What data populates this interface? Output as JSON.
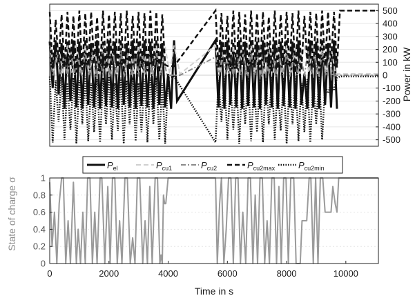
{
  "chart_data": [
    {
      "type": "line",
      "panel": "power",
      "y_axis_side": "right",
      "ylabel": "Power in kW",
      "ylim": [
        -550,
        550
      ],
      "yticks": [
        500,
        400,
        300,
        200,
        100,
        0,
        -100,
        -200,
        -300,
        -400,
        -500
      ],
      "xlim": [
        0,
        11100
      ],
      "grid": true,
      "legend_placement": "bottom-center",
      "series": [
        {
          "key": "P_el",
          "name": "P",
          "sub": "el",
          "style": "solid",
          "color": "#111111",
          "width": 3,
          "x": [
            0,
            100,
            200,
            300,
            400,
            500,
            600,
            700,
            800,
            900,
            1000,
            1100,
            1200,
            1300,
            1400,
            1500,
            1600,
            1700,
            1800,
            1900,
            2000,
            2100,
            2200,
            2300,
            2400,
            2500,
            2600,
            2700,
            2800,
            2900,
            3000,
            3100,
            3200,
            3300,
            3400,
            3500,
            3600,
            3700,
            3800,
            3900,
            4000,
            4100,
            4200,
            4300,
            5600,
            5700,
            5800,
            5900,
            6000,
            6100,
            6200,
            6300,
            6400,
            6500,
            6600,
            6700,
            6800,
            6900,
            7000,
            7100,
            7200,
            7300,
            7400,
            7500,
            7600,
            7700,
            7800,
            7900,
            8000,
            8100,
            8200,
            8300,
            8400,
            8500,
            8600,
            8700,
            8800,
            8900,
            9000,
            9100,
            9200,
            9300,
            9400,
            9500,
            9600,
            9700
          ],
          "y": [
            260,
            -100,
            270,
            -150,
            250,
            -260,
            260,
            -200,
            270,
            -250,
            260,
            -260,
            270,
            -230,
            250,
            -250,
            270,
            -260,
            260,
            -240,
            270,
            -250,
            260,
            -260,
            270,
            -230,
            250,
            -250,
            270,
            -260,
            260,
            -240,
            270,
            -250,
            260,
            -260,
            270,
            -230,
            250,
            -250,
            10,
            -260,
            270,
            -200,
            270,
            -250,
            260,
            -260,
            270,
            -230,
            250,
            -250,
            270,
            -260,
            260,
            -240,
            270,
            -250,
            260,
            -260,
            270,
            -230,
            250,
            -250,
            270,
            -260,
            260,
            -240,
            270,
            -250,
            260,
            -260,
            270,
            -230,
            10,
            -260,
            270,
            -250,
            260,
            -260,
            270,
            -230,
            250,
            -250,
            270,
            -260
          ]
        },
        {
          "key": "P_cu1",
          "name": "P",
          "sub": "cu1",
          "style": "dashed",
          "color": "#cfcfcf",
          "width": 2,
          "x": [
            0,
            150,
            300,
            450,
            600,
            750,
            900,
            1050,
            1200,
            1350,
            1500,
            1650,
            1800,
            1950,
            2100,
            2250,
            2400,
            2550,
            2700,
            2850,
            3000,
            3150,
            3300,
            3450,
            3600,
            3750,
            3900,
            4050,
            4200,
            4400,
            5600,
            5750,
            5900,
            6050,
            6200,
            6350,
            6500,
            6650,
            6800,
            6950,
            7100,
            7250,
            7400,
            7550,
            7700,
            7850,
            8000,
            8150,
            8300,
            8450,
            8600,
            8750,
            8900,
            9050,
            9200,
            9350,
            9500,
            9650,
            9800,
            11100
          ],
          "y": [
            230,
            20,
            220,
            10,
            230,
            20,
            240,
            10,
            230,
            20,
            220,
            10,
            230,
            20,
            240,
            10,
            230,
            20,
            220,
            10,
            230,
            20,
            240,
            10,
            230,
            20,
            220,
            10,
            230,
            10,
            230,
            20,
            220,
            10,
            230,
            20,
            240,
            10,
            230,
            20,
            220,
            10,
            230,
            20,
            240,
            10,
            230,
            20,
            220,
            10,
            230,
            20,
            240,
            10,
            230,
            20,
            220,
            10,
            10,
            10
          ]
        },
        {
          "key": "P_cu2",
          "name": "P",
          "sub": "cu2",
          "style": "dashdot",
          "color": "#8a8a8a",
          "width": 2,
          "x": [
            0,
            120,
            240,
            360,
            480,
            600,
            720,
            840,
            960,
            1080,
            1200,
            1320,
            1440,
            1560,
            1680,
            1800,
            1920,
            2040,
            2160,
            2280,
            2400,
            2520,
            2640,
            2760,
            2880,
            3000,
            3120,
            3240,
            3360,
            3480,
            3600,
            3720,
            3840,
            3960,
            4400,
            5600,
            5720,
            5840,
            5960,
            6080,
            6200,
            6320,
            6440,
            6560,
            6680,
            6800,
            6920,
            7040,
            7160,
            7280,
            7400,
            7520,
            7640,
            7760,
            7880,
            8000,
            8120,
            8240,
            8360,
            8480,
            8600,
            8720,
            8840,
            8960,
            9080,
            9200,
            9320,
            9440,
            9560,
            9680,
            9800,
            11100
          ],
          "y": [
            140,
            -10,
            180,
            0,
            160,
            -10,
            190,
            0,
            150,
            -10,
            170,
            0,
            180,
            -10,
            160,
            0,
            190,
            -10,
            150,
            0,
            170,
            -10,
            180,
            0,
            160,
            -10,
            190,
            0,
            150,
            -10,
            170,
            0,
            140,
            0,
            0,
            140,
            -10,
            180,
            0,
            160,
            -10,
            190,
            0,
            150,
            -10,
            170,
            0,
            180,
            -10,
            160,
            0,
            190,
            -10,
            150,
            0,
            170,
            -10,
            180,
            0,
            160,
            -10,
            190,
            0,
            150,
            -10,
            170,
            0,
            140,
            -10,
            0,
            0,
            0
          ]
        },
        {
          "key": "P_cu2max",
          "name": "P",
          "sub": "cu2max",
          "style": "dashed",
          "color": "#111111",
          "width": 2.5,
          "x": [
            0,
            100,
            200,
            300,
            400,
            500,
            600,
            700,
            800,
            900,
            1000,
            1100,
            1200,
            1300,
            1400,
            1500,
            1600,
            1700,
            1800,
            1900,
            2000,
            2100,
            2200,
            2300,
            2400,
            2500,
            2600,
            2700,
            2800,
            2900,
            3000,
            3100,
            3200,
            3300,
            3400,
            3500,
            3600,
            3700,
            3800,
            3900,
            4000,
            4200,
            5600,
            5700,
            5800,
            5900,
            6000,
            6100,
            6200,
            6300,
            6400,
            6500,
            6600,
            6700,
            6800,
            6900,
            7000,
            7100,
            7200,
            7300,
            7400,
            7500,
            7600,
            7700,
            7800,
            7900,
            8000,
            8100,
            8200,
            8300,
            8400,
            8500,
            8600,
            8700,
            8800,
            8900,
            9000,
            9100,
            9200,
            9300,
            9400,
            9500,
            9600,
            9700,
            9800,
            11100
          ],
          "y": [
            490,
            50,
            430,
            100,
            470,
            60,
            490,
            80,
            460,
            20,
            500,
            40,
            480,
            70,
            490,
            90,
            450,
            30,
            500,
            50,
            470,
            80,
            490,
            60,
            480,
            20,
            500,
            40,
            460,
            90,
            490,
            60,
            480,
            30,
            500,
            70,
            490,
            20,
            470,
            80,
            70,
            70,
            500,
            60,
            480,
            90,
            460,
            30,
            500,
            50,
            490,
            80,
            470,
            20,
            500,
            60,
            480,
            40,
            490,
            90,
            450,
            30,
            500,
            50,
            470,
            80,
            490,
            60,
            480,
            20,
            500,
            40,
            460,
            90,
            490,
            60,
            480,
            30,
            500,
            70,
            490,
            100,
            490,
            60,
            500,
            500
          ]
        },
        {
          "key": "P_cu2min",
          "name": "P",
          "sub": "cu2min",
          "style": "dotted",
          "color": "#111111",
          "width": 2.5,
          "x": [
            0,
            100,
            200,
            300,
            400,
            500,
            600,
            700,
            800,
            900,
            1000,
            1100,
            1200,
            1300,
            1400,
            1500,
            1600,
            1700,
            1800,
            1900,
            2000,
            2100,
            2200,
            2300,
            2400,
            2500,
            2600,
            2700,
            2800,
            2900,
            3000,
            3100,
            3200,
            3300,
            3400,
            3500,
            3600,
            3700,
            3800,
            3900,
            4000,
            4200,
            5600,
            5700,
            5800,
            5900,
            6000,
            6100,
            6200,
            6300,
            6400,
            6500,
            6600,
            6700,
            6800,
            6900,
            7000,
            7100,
            7200,
            7300,
            7400,
            7500,
            7600,
            7700,
            7800,
            7900,
            8000,
            8100,
            8200,
            8300,
            8400,
            8500,
            8600,
            8700,
            8800,
            8900,
            9000,
            9100,
            9200,
            9300,
            9400,
            9500,
            9600,
            9700,
            9800,
            11100
          ],
          "y": [
            -10,
            -520,
            -40,
            -360,
            -10,
            -500,
            -60,
            -420,
            -20,
            -530,
            -40,
            -380,
            -10,
            -510,
            -60,
            -440,
            -30,
            -520,
            -20,
            -380,
            -10,
            -500,
            -60,
            -430,
            -20,
            -530,
            -40,
            -380,
            -10,
            -510,
            -60,
            -440,
            -30,
            -520,
            -20,
            -380,
            -10,
            -500,
            -60,
            -530,
            -20,
            -10,
            -520,
            -40,
            -360,
            -10,
            -500,
            -60,
            -420,
            -20,
            -530,
            -40,
            -380,
            -10,
            -510,
            -60,
            -440,
            -30,
            -520,
            -20,
            -380,
            -10,
            -500,
            -60,
            -430,
            -20,
            -530,
            -40,
            -380,
            -10,
            -510,
            -60,
            -440,
            -30,
            -520,
            -20,
            -380,
            -10,
            -500,
            -80,
            -140,
            -60,
            -120,
            -20,
            -10,
            -10
          ]
        }
      ]
    },
    {
      "type": "line",
      "panel": "soc",
      "ylabel": "State of charge σ",
      "ylim": [
        0,
        1
      ],
      "yticks": [
        "0",
        "0.2",
        "0.4",
        "0.6",
        "0.8",
        "1"
      ],
      "xlabel": "Time in s",
      "xlim": [
        0,
        11100
      ],
      "xticks": [
        "0",
        "2000",
        "4000",
        "6000",
        "8000",
        "10000"
      ],
      "grid": true,
      "series": [
        {
          "key": "sigma",
          "color": "#9a9a9a",
          "x": [
            0,
            80,
            160,
            240,
            320,
            400,
            460,
            540,
            620,
            700,
            800,
            900,
            960,
            1040,
            1120,
            1200,
            1280,
            1360,
            1440,
            1520,
            1600,
            1700,
            1760,
            1860,
            1960,
            2040,
            2120,
            2200,
            2280,
            2360,
            2440,
            2540,
            2620,
            2720,
            2800,
            2880,
            2960,
            3040,
            3140,
            3220,
            3300,
            3380,
            3460,
            3560,
            3640,
            3720,
            3760,
            3800,
            3840,
            3880,
            3920,
            4000,
            4100,
            4400,
            5600,
            5660,
            5740,
            5800,
            5880,
            5960,
            6040,
            6120,
            6200,
            6280,
            6360,
            6440,
            6520,
            6620,
            6700,
            6780,
            6860,
            6940,
            7020,
            7100,
            7180,
            7260,
            7340,
            7420,
            7500,
            7580,
            7660,
            7740,
            7820,
            7900,
            7980,
            8060,
            8140,
            8240,
            8320,
            8400,
            8460,
            8520,
            8600,
            8680,
            8760,
            8820,
            8900,
            8980,
            9060,
            9140,
            9220,
            9300,
            9400,
            9500,
            9560,
            9640,
            9700,
            9760,
            9800,
            11100
          ],
          "y": [
            0.95,
            0.2,
            0.6,
            0.0,
            0.7,
            1.0,
            1.0,
            0.0,
            0.5,
            0.0,
            0.95,
            0.0,
            0.4,
            0.0,
            0.6,
            0.0,
            1.0,
            1.0,
            0.0,
            0.6,
            0.0,
            1.0,
            1.0,
            0.0,
            0.9,
            0.0,
            1.0,
            1.0,
            0.0,
            0.5,
            0.0,
            1.0,
            1.0,
            0.0,
            0.3,
            0.0,
            1.0,
            1.0,
            0.0,
            0.5,
            0.0,
            0.9,
            0.0,
            1.0,
            1.0,
            0.0,
            0.1,
            0.0,
            0.8,
            0.7,
            0.7,
            1.0,
            1.0,
            1.0,
            1.0,
            0.0,
            0.7,
            1.0,
            0.0,
            0.4,
            1.0,
            1.0,
            0.0,
            1.0,
            1.0,
            0.0,
            0.6,
            0.0,
            1.0,
            1.0,
            0.0,
            0.8,
            0.0,
            1.0,
            1.0,
            0.0,
            0.5,
            0.0,
            1.0,
            1.0,
            0.0,
            0.9,
            0.0,
            1.0,
            1.0,
            0.0,
            1.0,
            1.0,
            0.0,
            0.0,
            0.0,
            0.5,
            0.5,
            0.5,
            1.0,
            1.0,
            0.0,
            1.0,
            0.0,
            1.0,
            1.0,
            0.6,
            0.6,
            0.6,
            0.9,
            0.7,
            0.6,
            1.0,
            1.0,
            1.0
          ]
        }
      ]
    }
  ]
}
